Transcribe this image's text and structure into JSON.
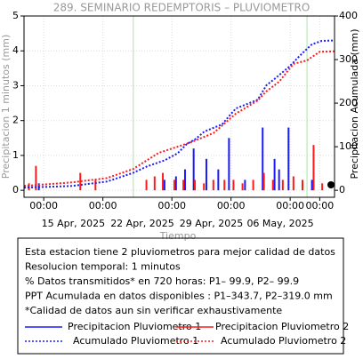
{
  "chart_data": {
    "type": "line",
    "title": "289. SEMINARIO REDEMPTORIS – PLUVIOMETRO",
    "xlabel": "Tiempo",
    "ylabel": "Precipitacion 1 minutos (mm)",
    "y2label": "Precipitacion Acumulada (mm)",
    "xlim": [
      "2025-04-10T00:00",
      "2025-05-11T12:00"
    ],
    "xticks": [
      {
        "value": "2025-04-12T00:00",
        "label": "00:00"
      },
      {
        "value": "2025-04-18T00:00",
        "label": "00:00"
      },
      {
        "value": "2025-04-25T00:00",
        "label": "00:00"
      },
      {
        "value": "2025-05-01T00:00",
        "label": "00:00"
      },
      {
        "value": "2025-05-07T00:00",
        "label": "00:00"
      },
      {
        "value": "2025-05-10T00:00",
        "label": "00:00"
      }
    ],
    "date_ticks": [
      {
        "value": "2025-04-15T00:00",
        "label": "15 Apr, 2025"
      },
      {
        "value": "2025-04-22T00:00",
        "label": "22 Apr, 2025"
      },
      {
        "value": "2025-04-29T00:00",
        "label": "29 Apr, 2025"
      },
      {
        "value": "2025-05-06T00:00",
        "label": "06 May, 2025"
      }
    ],
    "vlines": [
      {
        "value": "2025-04-21T02:00",
        "color": "#a6e8a0"
      },
      {
        "value": "2025-05-08T17:00",
        "color": "#a6e8a0"
      }
    ],
    "ylim": [
      -0.2,
      5
    ],
    "yticks": [
      0,
      1,
      2,
      3,
      4,
      5
    ],
    "y2lim": [
      -16,
      400
    ],
    "y2ticks": [
      0,
      100,
      200,
      300,
      400
    ],
    "grid": true,
    "series": [
      {
        "name": "Precipitacion Pluviometro 1",
        "color": "#1a1aff",
        "kind": "impulse",
        "style": "solid",
        "axis": "y",
        "x": [
          "2025-04-11T12:00",
          "2025-04-24T06:00",
          "2025-04-25T10:00",
          "2025-04-26T08:00",
          "2025-04-27T05:00",
          "2025-04-28T12:00",
          "2025-04-29T17:00",
          "2025-04-30T19:00",
          "2025-05-02T10:00",
          "2025-05-04T05:00",
          "2025-05-05T10:00",
          "2025-05-05T21:00",
          "2025-05-06T20:00",
          "2025-05-09T05:00"
        ],
        "values": [
          0.2,
          0.3,
          0.4,
          0.6,
          1.2,
          0.9,
          0.6,
          1.5,
          0.3,
          1.8,
          0.9,
          0.6,
          1.8,
          0.3
        ]
      },
      {
        "name": "Precipitacion Pluviometro 2",
        "color": "#ff1a1a",
        "kind": "impulse",
        "style": "solid",
        "axis": "y",
        "x": [
          "2025-04-10T12:00",
          "2025-04-11T05:00",
          "2025-04-15T17:00",
          "2025-04-17T06:00",
          "2025-04-22T10:00",
          "2025-04-23T06:00",
          "2025-04-24T02:00",
          "2025-04-25T06:00",
          "2025-04-26T04:00",
          "2025-04-27T08:00",
          "2025-04-28T06:00",
          "2025-04-29T05:00",
          "2025-04-30T08:00",
          "2025-05-01T06:00",
          "2025-05-02T04:00",
          "2025-05-03T06:00",
          "2025-05-04T08:00",
          "2025-05-05T06:00",
          "2025-05-06T06:00",
          "2025-05-07T08:00",
          "2025-05-08T06:00",
          "2025-05-09T09:00",
          "2025-05-10T06:00"
        ],
        "values": [
          0.2,
          0.7,
          0.5,
          0.3,
          0.3,
          0.4,
          0.5,
          0.3,
          0.3,
          0.3,
          0.2,
          0.3,
          0.3,
          0.3,
          0.2,
          0.3,
          0.5,
          0.3,
          0.3,
          0.4,
          0.3,
          1.3,
          0.2
        ]
      },
      {
        "name": "Acumulado Pluviometro 1",
        "color": "#1a1aff",
        "kind": "line",
        "style": "dotted",
        "axis": "y2",
        "x": [
          "2025-04-10T00:00",
          "2025-04-14T19:00",
          "2025-04-18T10:00",
          "2025-04-21T02:00",
          "2025-04-22T12:00",
          "2025-04-24T07:00",
          "2025-04-25T14:00",
          "2025-04-26T12:00",
          "2025-04-27T10:00",
          "2025-04-28T07:00",
          "2025-04-30T02:00",
          "2025-04-30T19:00",
          "2025-05-01T12:00",
          "2025-05-03T17:00",
          "2025-05-04T14:00",
          "2025-05-05T12:00",
          "2025-05-06T22:00",
          "2025-05-08T05:00",
          "2025-05-09T05:00",
          "2025-05-10T05:00",
          "2025-05-11T12:00"
        ],
        "values": [
          6,
          10,
          20,
          40,
          55,
          69,
          85,
          106,
          118,
          135,
          151,
          170,
          188,
          208,
          241,
          257,
          284,
          314,
          335,
          343,
          344
        ]
      },
      {
        "name": "Acumulado Pluviometro 2",
        "color": "#ff1a1a",
        "kind": "line",
        "style": "dotted",
        "axis": "y2",
        "x": [
          "2025-04-10T00:00",
          "2025-04-14T19:00",
          "2025-04-18T10:00",
          "2025-04-21T02:00",
          "2025-04-23T16:00",
          "2025-04-26T22:00",
          "2025-04-29T05:00",
          "2025-05-01T12:00",
          "2025-05-03T17:00",
          "2025-05-04T14:00",
          "2025-05-05T21:00",
          "2025-05-07T08:00",
          "2025-05-08T17:00",
          "2025-05-10T00:00",
          "2025-05-11T12:00"
        ],
        "values": [
          10,
          18,
          28,
          49,
          86,
          110,
          131,
          176,
          206,
          227,
          249,
          290,
          298,
          318,
          319
        ]
      }
    ],
    "notes": [
      "Esta estacion tiene 2 pluviometros para mejor calidad de datos",
      "Resolucion temporal: 1 minutos",
      "% Datos transmitidos* en 720 horas: P1– 99.9, P2– 99.9",
      "PPT Acumulada en datos disponibles : P1–343.7, P2–319.0 mm",
      "*Calidad de datos aun sin verificar exhaustivamente"
    ]
  }
}
